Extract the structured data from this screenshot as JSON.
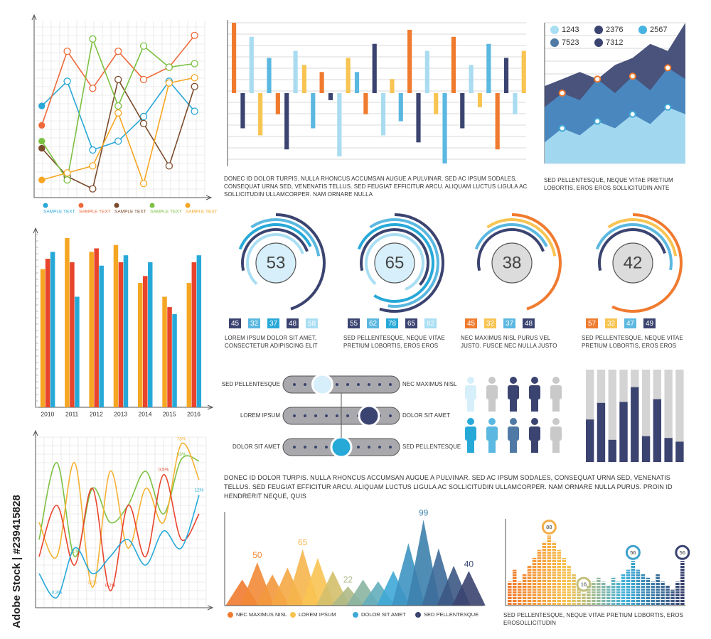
{
  "chart_data": [
    {
      "type": "line",
      "x": [
        0,
        1,
        2,
        3,
        4,
        5,
        6
      ],
      "xlim": [
        -0.3,
        6.4
      ],
      "ylim": [
        0,
        10
      ],
      "series": [
        {
          "name": "SAMPLE TEXT",
          "color": "#2aa7d6",
          "values": [
            5.2,
            6.6,
            2.7,
            3.2,
            4.6,
            6.6,
            4.9
          ]
        },
        {
          "name": "SAMPLE TEXT",
          "color": "#ee6a3a",
          "values": [
            4.1,
            8.3,
            6.2,
            8.3,
            6.7,
            7.4,
            9.2
          ]
        },
        {
          "name": "SAMPLE TEXT",
          "color": "#7b4a2b",
          "values": [
            2.8,
            1.2,
            0.5,
            6.7,
            4.2,
            1.8,
            6.3
          ]
        },
        {
          "name": "SAMPLE TEXT",
          "color": "#7cc142",
          "values": [
            3.2,
            1.0,
            9.0,
            5.2,
            8.6,
            7.4,
            7.6
          ]
        },
        {
          "name": "SAMPLE TEXT",
          "color": "#f5a623",
          "values": [
            1.0,
            1.4,
            1.8,
            4.8,
            0.8,
            6.5,
            6.8
          ]
        }
      ]
    },
    {
      "type": "bar",
      "ylim": [
        -10,
        10
      ],
      "values": [
        10,
        -5,
        8,
        -6,
        5,
        -3,
        -8,
        6,
        4,
        -5,
        3,
        -1,
        -9,
        5,
        3,
        -3,
        7,
        -6,
        2,
        -4,
        9,
        -7,
        6,
        -3,
        -10,
        8,
        -5,
        4,
        -2,
        7,
        -8,
        5,
        -3,
        6
      ],
      "colors": [
        "#f07b2f",
        "#3b4470",
        "#a9dcf0",
        "#f8c452",
        "#5bb8e0"
      ],
      "caption": "DONEC ID DOLOR TURPIS. NULLA RHONCUS ACCUMSAN AUGUE A PULVINAR. SED AC IPSUM SODALES, CONSEQUAT URNA SED, VENENATIS TELLUS. SED FEUGIAT EFFICITUR ARCU. ALIQUAM LUCTUS LIGULA AC SOLLICITUDIN ULLAMCORPER. NAM ORNARE NULLA"
    },
    {
      "type": "area",
      "ylim": [
        0,
        10
      ],
      "series": [
        {
          "color": "#3b4470",
          "values": [
            5.5,
            6,
            6.5,
            6,
            7,
            7.5,
            8.5,
            8,
            10
          ]
        },
        {
          "color": "#4a8cc4",
          "values": [
            4,
            5,
            4.5,
            6,
            5,
            6.2,
            5.2,
            6.8,
            6
          ]
        },
        {
          "color": "#a9def3",
          "values": [
            1.5,
            2.5,
            2,
            3,
            2.5,
            3.5,
            2.8,
            4,
            3.5
          ]
        }
      ],
      "legend": [
        {
          "value": 1243,
          "color": "#a9def3"
        },
        {
          "value": 2376,
          "color": "#3b4470"
        },
        {
          "value": 2567,
          "color": "#47b3e0"
        },
        {
          "value": 7523,
          "color": "#4f7aa5"
        },
        {
          "value": 7312,
          "color": "#3b4470"
        }
      ],
      "caption": "SED PELLENTESQUE, NEQUE VITAE PRETIUM LOBORTIS, EROS EROS SOLLICITUDIN ANTE"
    },
    {
      "type": "grouped_bar",
      "categories": [
        "2010",
        "2011",
        "2012",
        "2013",
        "2014",
        "2015",
        "2016"
      ],
      "ylim": [
        0,
        10
      ],
      "series": [
        {
          "color": "#f5a623",
          "values": [
            8.0,
            9.8,
            9.0,
            9.4,
            7.2,
            6.4,
            7.2
          ]
        },
        {
          "color": "#e8452c",
          "values": [
            8.6,
            8.4,
            9.2,
            8.4,
            7.6,
            5.8,
            8.4
          ]
        },
        {
          "color": "#27a9d8",
          "values": [
            9.0,
            6.4,
            8.2,
            8.8,
            8.4,
            5.4,
            8.8
          ]
        }
      ]
    },
    {
      "type": "donut",
      "value": 53,
      "values": [
        45,
        32,
        37,
        48,
        58
      ],
      "colors": [
        "#3b4470",
        "#5bb8e0",
        "#27a9d8",
        "#3b4470",
        "#a9def3"
      ],
      "center_color": "#d6effa",
      "caption": "LOREM IPSUM DOLOR SIT AMET, CONSECTETUR ADIPISCING ELIT"
    },
    {
      "type": "donut",
      "value": 65,
      "values": [
        55,
        62,
        78,
        65,
        82
      ],
      "colors": [
        "#3b4470",
        "#5bb8e0",
        "#27a9d8",
        "#3b4470",
        "#a9def3"
      ],
      "center_color": "#d6effa",
      "caption": "SED PELLENTESQUE, NEQUE VITAE PRETIUM LOBORTIS, EROS EROS"
    },
    {
      "type": "donut",
      "value": 38,
      "values": [
        45,
        32,
        37,
        48
      ],
      "colors": [
        "#f07b2f",
        "#f8c452",
        "#5bb8e0",
        "#3b4470"
      ],
      "center_color": "#dcdcdc",
      "caption": "NEC MAXIMUS NISL PURUS VEL JUSTO. FUSCE NEC NULLA JUSTO"
    },
    {
      "type": "donut",
      "value": 42,
      "values": [
        57,
        32,
        47,
        49
      ],
      "colors": [
        "#f07b2f",
        "#f8c452",
        "#5bb8e0",
        "#3b4470"
      ],
      "center_color": "#dcdcdc",
      "caption": "SED PELLENTESQUE, NEQUE VITAE PRETIUM LOBORTIS, EROS EROS"
    },
    {
      "type": "stacked_bar",
      "ylim": [
        0,
        10
      ],
      "values": [
        4.6,
        6.4,
        2.4,
        6.5,
        8.1,
        2.8,
        6.8,
        2.6,
        2.2
      ],
      "color": "#3b4470",
      "background": "#d4d4d4"
    },
    {
      "type": "spline",
      "x": [
        0,
        1,
        2,
        3,
        4,
        5,
        6,
        7,
        8,
        9
      ],
      "xlim": [
        -0.2,
        9.4
      ],
      "ylim": [
        0,
        10
      ],
      "series": [
        {
          "color": "#7cc142",
          "values": [
            4,
            8.5,
            3,
            7,
            5,
            6,
            8,
            5.5,
            8.7,
            8.6
          ],
          "point_labels": [
            null,
            null,
            "11%",
            null,
            null,
            null,
            null,
            null,
            "53%",
            null
          ]
        },
        {
          "color": "#f5b133",
          "values": [
            5,
            3,
            8.5,
            1.2,
            8,
            3.5,
            7,
            5,
            9.6,
            7.5
          ],
          "point_labels": [
            null,
            null,
            null,
            "21%",
            null,
            null,
            null,
            null,
            "73%",
            null
          ]
        },
        {
          "color": "#e8452c",
          "values": [
            3,
            6,
            2.5,
            7,
            1.0,
            6,
            3,
            7.8,
            4,
            5.5
          ],
          "point_labels": [
            null,
            null,
            null,
            null,
            "0,2%",
            null,
            null,
            "0,5%",
            null,
            null
          ]
        },
        {
          "color": "#27a9d8",
          "values": [
            2,
            0.6,
            3.5,
            2,
            3,
            4,
            2.5,
            4.5,
            3.5,
            6.6
          ],
          "point_labels": [
            null,
            "0,3%",
            null,
            null,
            null,
            null,
            null,
            null,
            null,
            "12%"
          ]
        }
      ]
    },
    {
      "type": "mountain",
      "ylim": [
        0,
        100
      ],
      "values": [
        30,
        50,
        36,
        44,
        65,
        55,
        40,
        22,
        30,
        28,
        40,
        72,
        99,
        66,
        46,
        40
      ],
      "value_labels": [
        null,
        "50",
        null,
        null,
        "65",
        null,
        null,
        "22",
        null,
        null,
        null,
        null,
        "99",
        null,
        null,
        "40"
      ],
      "legend": [
        {
          "name": "NEC MAXIMUS NISL",
          "color": "#f07b2f"
        },
        {
          "name": "LOREM IPSUM",
          "color": "#f8c452"
        },
        {
          "name": "DOLOR SIT AMET",
          "color": "#3fa9d6"
        },
        {
          "name": "SED PELLENTESQUE",
          "color": "#3b4470"
        }
      ]
    },
    {
      "type": "segment_bar",
      "ylim": [
        0,
        100
      ],
      "values": [
        30,
        45,
        30,
        40,
        50,
        60,
        70,
        80,
        88,
        80,
        70,
        60,
        50,
        40,
        30,
        16,
        25,
        30,
        35,
        30,
        25,
        35,
        30,
        40,
        45,
        56,
        45,
        40,
        35,
        30,
        40,
        30,
        25,
        20,
        30,
        56
      ],
      "value_labels": [
        null,
        null,
        null,
        null,
        null,
        null,
        null,
        null,
        "88",
        null,
        null,
        null,
        null,
        null,
        null,
        "16",
        null,
        null,
        null,
        null,
        null,
        null,
        null,
        null,
        null,
        "56",
        null,
        null,
        null,
        null,
        null,
        null,
        null,
        null,
        null,
        "56"
      ],
      "colors": [
        "#f07b2f",
        "#f8c452",
        "#3fb0dc",
        "#3b4470"
      ],
      "caption": "SED PELLENTESQUE, NEQUE VITAE PRETIUM LOBORTIS, EROS EROSOLLICITUDIN"
    }
  ],
  "sliders": [
    {
      "left": "SED PELLENTESQUE",
      "right": "NEC MAXIMUS NISL"
    },
    {
      "left": "LOREM IPSUM",
      "right": "DOLOR SIT AMET"
    },
    {
      "left": "DOLOR SIT AMET",
      "right": "SED PELLENTESQUE"
    }
  ],
  "paragraph": "DONEC ID DOLOR TURPIS. NULLA RHONCUS ACCUMSAN AUGUE A PULVINAR. SED AC IPSUM SODALES, CONSEQUAT URNA SED, VENENATIS TELLUS. SED FEUGIAT EFFICITUR ARCU. ALIQUAM LUCTUS LIGULA AC SOLLICITUDIN ULLAMCORPER. NAM ORNARE NULLA PURUS. PROIN ID HENDRERIT NEQUE, QUIS",
  "watermark": "Adobe Stock | #239415828"
}
